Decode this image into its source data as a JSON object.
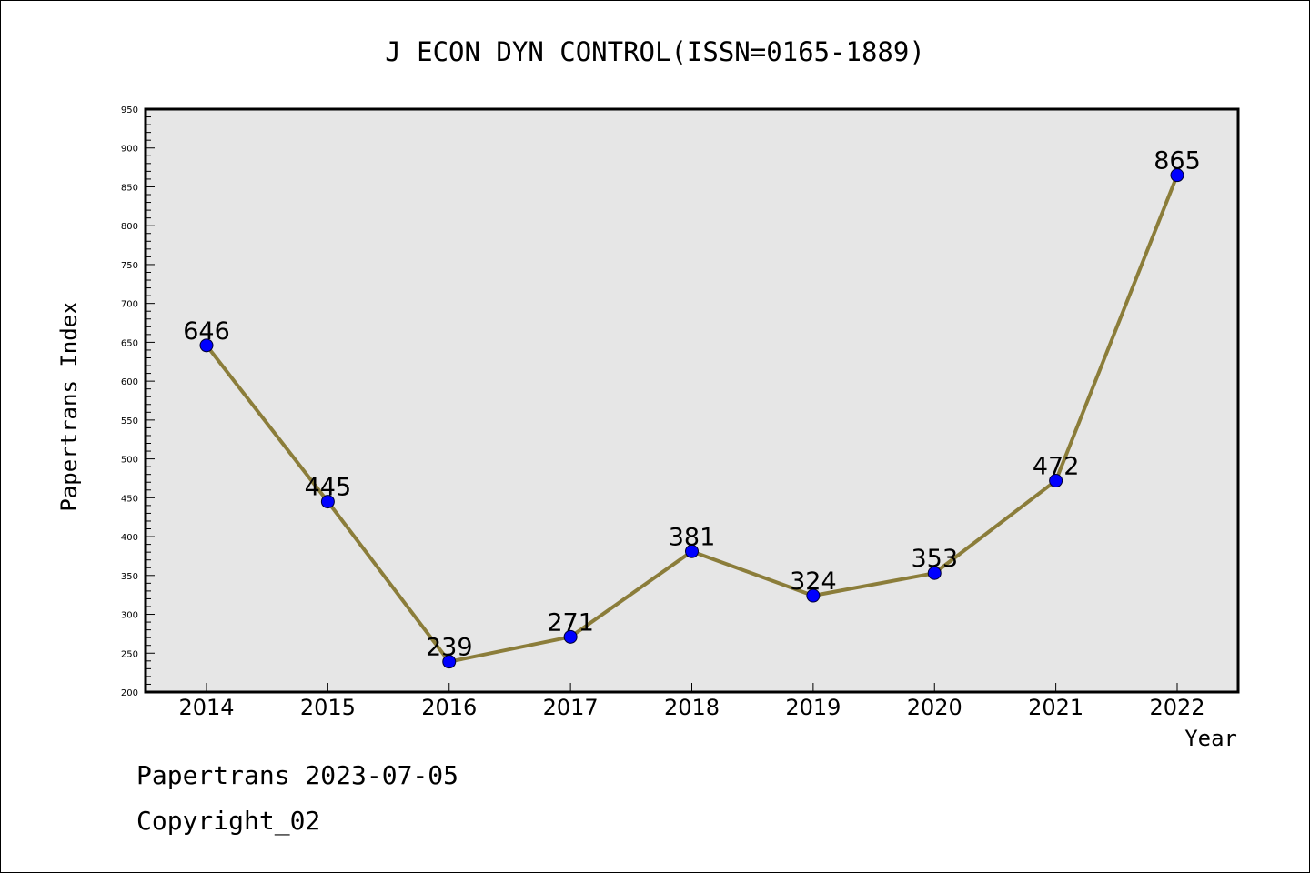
{
  "chart_data": {
    "type": "line",
    "title": "J ECON DYN CONTROL(ISSN=0165-1889)",
    "xlabel": "Year",
    "ylabel": "Papertrans Index",
    "categories": [
      "2014",
      "2015",
      "2016",
      "2017",
      "2018",
      "2019",
      "2020",
      "2021",
      "2022"
    ],
    "values": [
      646,
      445,
      239,
      271,
      381,
      324,
      353,
      472,
      865
    ],
    "data_labels": [
      "646",
      "445",
      "239",
      "271",
      "381",
      "324",
      "353",
      "472",
      "865"
    ],
    "ylim": [
      200,
      950
    ],
    "yticks": [
      "200",
      "250",
      "300",
      "350",
      "400",
      "450",
      "500",
      "550",
      "600",
      "650",
      "700",
      "750",
      "800",
      "850",
      "900",
      "950"
    ],
    "grid": false,
    "plot_background": "#e6e6e6",
    "line_color": "#8b7d3a",
    "marker_color": "#0000ff"
  },
  "footer": {
    "line1": "Papertrans 2023-07-05",
    "line2": "Copyright_02"
  }
}
